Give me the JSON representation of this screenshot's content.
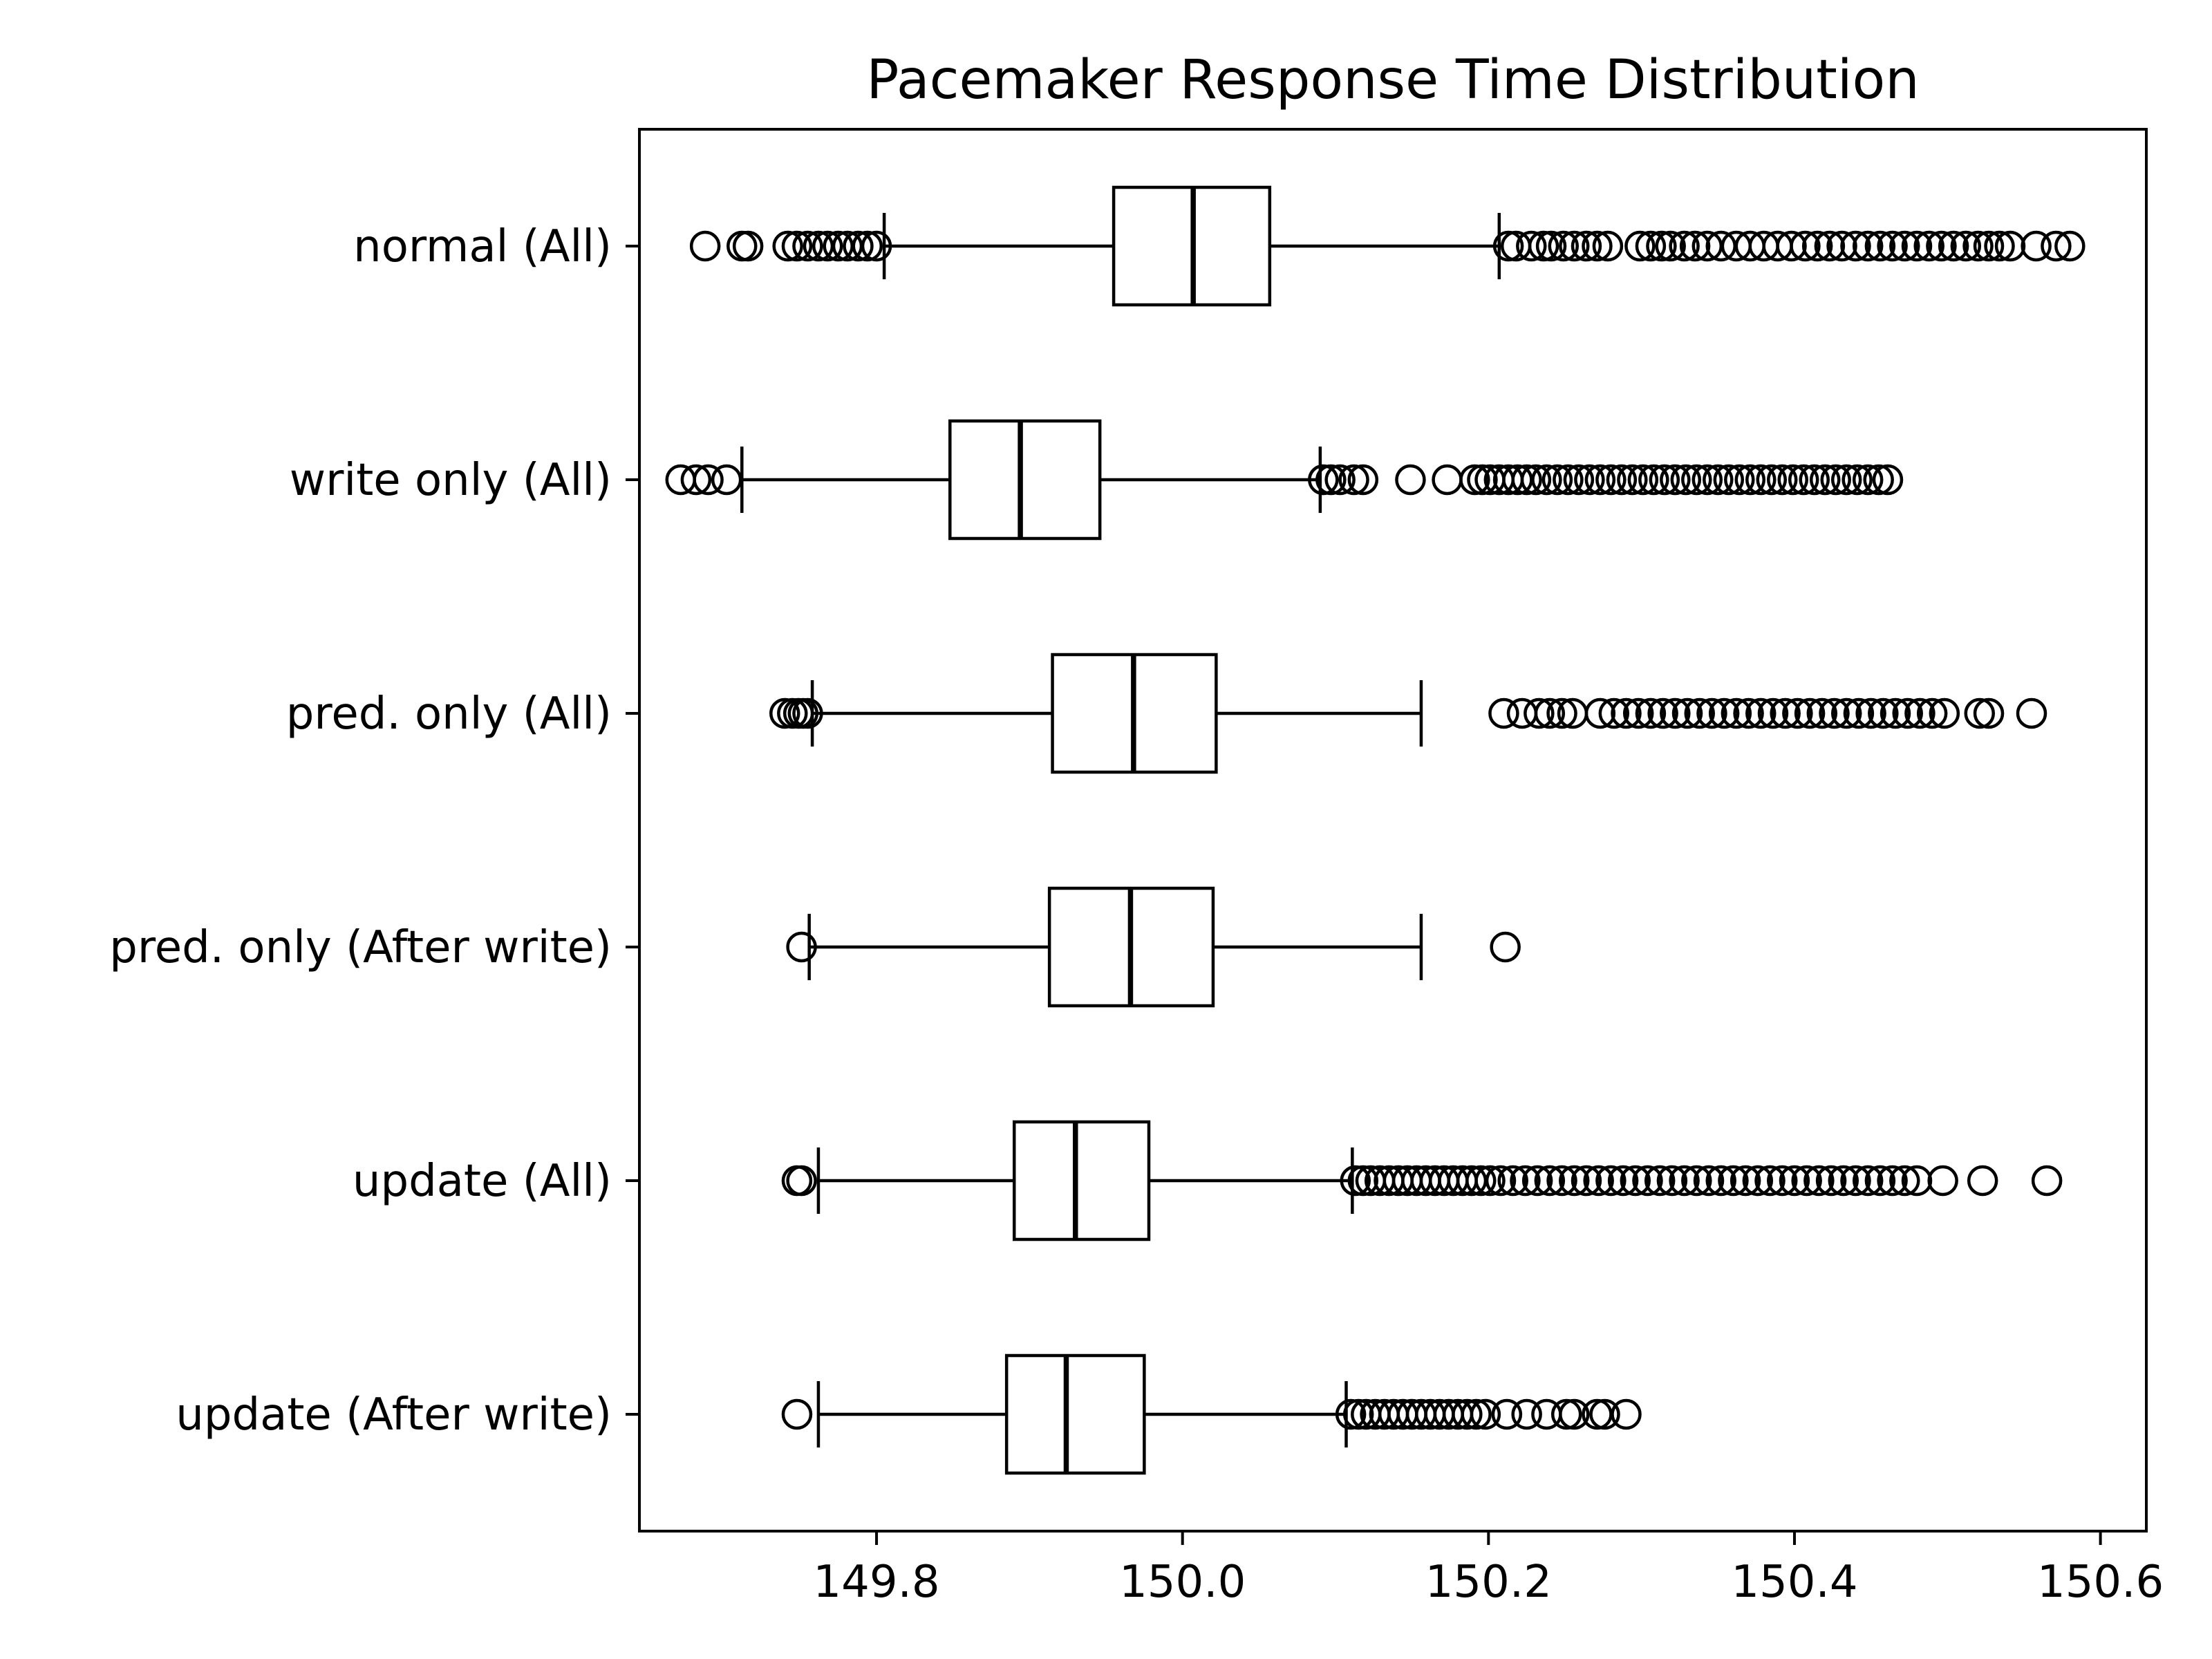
{
  "chart_data": {
    "type": "boxplot",
    "orientation": "horizontal",
    "title": "Pacemaker Response Time Distribution",
    "xlabel": "",
    "ylabel": "",
    "xlim": [
      149.645,
      150.63
    ],
    "xticks": [
      149.8,
      150.0,
      150.2,
      150.4,
      150.6
    ],
    "xtick_labels": [
      "149.8",
      "150.0",
      "150.2",
      "150.4",
      "150.6"
    ],
    "grid": false,
    "series": [
      {
        "label": "normal (All)",
        "whisker_low": 149.805,
        "q1": 149.955,
        "median": 150.007,
        "q3": 150.057,
        "whisker_high": 150.207,
        "outliers_low": [
          149.688,
          149.712,
          149.716,
          149.742,
          149.748,
          149.755,
          149.762,
          149.768,
          149.775,
          149.781,
          149.788,
          149.794,
          149.8
        ],
        "outliers_high": [
          150.213,
          150.218,
          150.228,
          150.236,
          150.241,
          150.249,
          150.256,
          150.264,
          150.271,
          150.278,
          150.299,
          150.306,
          150.313,
          150.319,
          150.328,
          150.335,
          150.343,
          150.352,
          150.362,
          150.371,
          150.38,
          150.389,
          150.398,
          150.407,
          150.415,
          150.423,
          150.431,
          150.44,
          150.448,
          150.456,
          150.464,
          150.472,
          150.48,
          150.488,
          150.496,
          150.504,
          150.512,
          150.52,
          150.527,
          150.534,
          150.541,
          150.558,
          150.571,
          150.58
        ]
      },
      {
        "label": "write only (All)",
        "whisker_low": 149.712,
        "q1": 149.848,
        "median": 149.894,
        "q3": 149.946,
        "whisker_high": 150.09,
        "outliers_low": [
          149.672,
          149.682,
          149.69,
          149.702
        ],
        "outliers_high": [
          150.092,
          150.097,
          150.103,
          150.112,
          150.118,
          150.149,
          150.173,
          150.191,
          150.196,
          150.201,
          150.207,
          150.213,
          150.219,
          150.225,
          150.231,
          150.238,
          150.245,
          150.252,
          150.259,
          150.266,
          150.273,
          150.28,
          150.287,
          150.294,
          150.301,
          150.308,
          150.315,
          150.322,
          150.329,
          150.336,
          150.343,
          150.35,
          150.357,
          150.364,
          150.371,
          150.378,
          150.385,
          150.392,
          150.399,
          150.406,
          150.413,
          150.42,
          150.427,
          150.434,
          150.441,
          150.448,
          150.455,
          150.461
        ]
      },
      {
        "label": "pred. only (All)",
        "whisker_low": 149.758,
        "q1": 149.915,
        "median": 149.968,
        "q3": 150.022,
        "whisker_high": 150.156,
        "outliers_low": [
          149.74,
          149.745,
          149.749,
          149.752,
          149.755
        ],
        "outliers_high": [
          150.21,
          150.222,
          150.233,
          150.24,
          150.248,
          150.255,
          150.273,
          150.282,
          150.29,
          150.298,
          150.306,
          150.314,
          150.322,
          150.33,
          150.338,
          150.346,
          150.354,
          150.362,
          150.37,
          150.378,
          150.386,
          150.394,
          150.402,
          150.41,
          150.418,
          150.426,
          150.434,
          150.442,
          150.45,
          150.458,
          150.466,
          150.474,
          150.482,
          150.49,
          150.498,
          150.521,
          150.527,
          150.555
        ]
      },
      {
        "label": "pred. only (After write)",
        "whisker_low": 149.756,
        "q1": 149.913,
        "median": 149.966,
        "q3": 150.02,
        "whisker_high": 150.156,
        "outliers_low": [
          149.751
        ],
        "outliers_high": [
          150.211
        ]
      },
      {
        "label": "update (All)",
        "whisker_low": 149.762,
        "q1": 149.89,
        "median": 149.93,
        "q3": 149.978,
        "whisker_high": 150.111,
        "outliers_low": [
          149.748,
          149.751
        ],
        "outliers_high": [
          150.113,
          150.118,
          150.123,
          150.129,
          150.135,
          150.141,
          150.147,
          150.153,
          150.159,
          150.165,
          150.171,
          150.177,
          150.183,
          150.189,
          150.195,
          150.201,
          150.208,
          150.216,
          150.224,
          150.232,
          150.24,
          150.248,
          150.256,
          150.264,
          150.272,
          150.28,
          150.288,
          150.296,
          150.304,
          150.312,
          150.32,
          150.328,
          150.336,
          150.344,
          150.352,
          150.36,
          150.368,
          150.376,
          150.384,
          150.392,
          150.4,
          150.408,
          150.416,
          150.424,
          150.432,
          150.44,
          150.448,
          150.456,
          150.464,
          150.472,
          150.48,
          150.497,
          150.523,
          150.565
        ]
      },
      {
        "label": "update (After write)",
        "whisker_low": 149.762,
        "q1": 149.885,
        "median": 149.924,
        "q3": 149.975,
        "whisker_high": 150.107,
        "outliers_low": [
          149.748
        ],
        "outliers_high": [
          150.11,
          150.115,
          150.12,
          150.126,
          150.132,
          150.138,
          150.144,
          150.15,
          150.156,
          150.162,
          150.168,
          150.174,
          150.18,
          150.186,
          150.192,
          150.198,
          150.212,
          150.225,
          150.238,
          150.251,
          150.256,
          150.271,
          150.276,
          150.29
        ]
      }
    ]
  }
}
